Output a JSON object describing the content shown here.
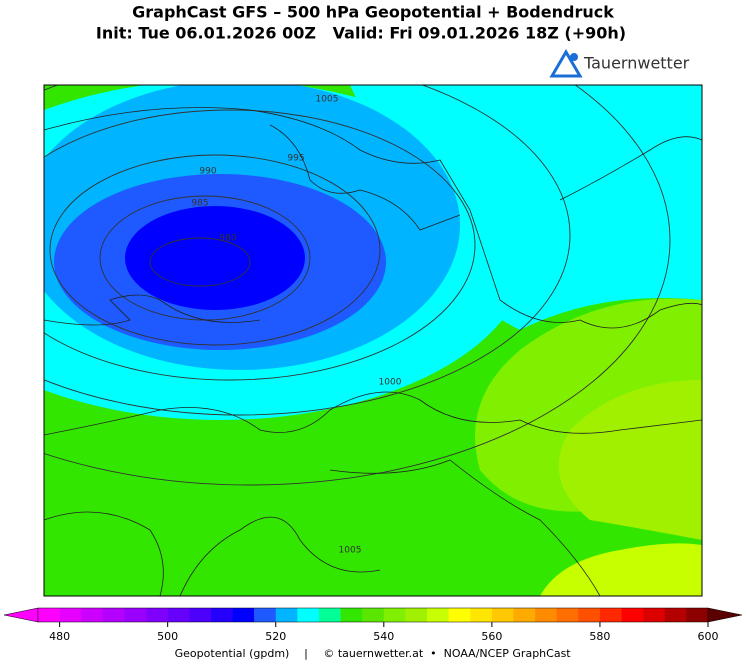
{
  "chart_data": {
    "type": "contour",
    "title": "GraphCast GFS – 500 hPa Geopotential + Bodendruck",
    "subtitle": "Init: Tue 06.01.2026 00Z   Valid: Fri 09.01.2026 18Z (+90h)",
    "logo": "Tauernwetter",
    "shading": [
      {
        "value": 533
      },
      {
        "value": 526
      },
      {
        "value": 541
      },
      {
        "value": 545
      },
      {
        "value": 549
      },
      {
        "value": 526
      },
      {
        "value": 522
      },
      {
        "value": 518
      },
      {
        "value": 514
      }
    ],
    "contours": {
      "levels": [
        980,
        985,
        990,
        995,
        1000,
        1005
      ],
      "color": "#333333"
    },
    "colorbar": {
      "clim": [
        476,
        600
      ],
      "colors": [
        "#ff00ff",
        "#e600ff",
        "#cc00ff",
        "#b300ff",
        "#9900ff",
        "#8000ff",
        "#6600ff",
        "#4d00ff",
        "#2600ff",
        "#0000ff",
        "#1e5aff",
        "#00b4ff",
        "#00ffff",
        "#00ff96",
        "#32e600",
        "#5ae600",
        "#80f000",
        "#a0f000",
        "#c8ff00",
        "#ffff00",
        "#ffe600",
        "#ffc800",
        "#ffaa00",
        "#ff8c00",
        "#ff6e00",
        "#ff5000",
        "#ff2800",
        "#ff0000",
        "#dc0000",
        "#b40000",
        "#8c0000"
      ],
      "over_color": "#5a0000",
      "ticks": [
        480,
        500,
        520,
        540,
        560,
        580,
        600
      ],
      "label": "Geopotential (gpdm)",
      "separator": "|",
      "credit": "© tauernwetter.at  •  NOAA/NCEP GraphCast"
    }
  }
}
